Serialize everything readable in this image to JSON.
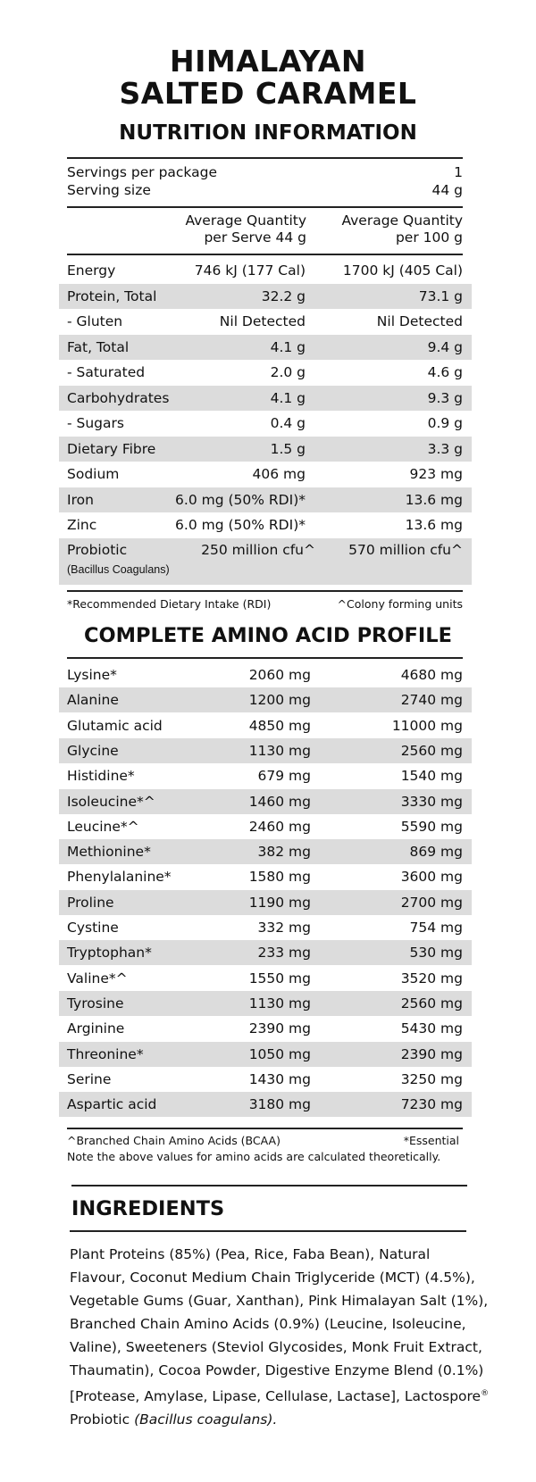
{
  "header": {
    "title_line1": "HIMALAYAN",
    "title_line2": "SALTED CARAMEL",
    "subtitle": "NUTRITION INFORMATION"
  },
  "servings": {
    "per_package_label": "Servings per package",
    "per_package_value": "1",
    "size_label": "Serving size",
    "size_value": "44 g"
  },
  "columns": {
    "per_serve_line1": "Average Quantity",
    "per_serve_line2": "per Serve 44 g",
    "per_100_line1": "Average Quantity",
    "per_100_line2": "per 100 g"
  },
  "nutrients": [
    {
      "name": "Energy",
      "serve": "746 kJ (177 Cal)",
      "per100": "1700 kJ (405 Cal)"
    },
    {
      "name": "Protein, Total",
      "serve": "32.2 g",
      "per100": "73.1 g"
    },
    {
      "name": "- Gluten",
      "serve": "Nil Detected",
      "per100": "Nil Detected"
    },
    {
      "name": "Fat, Total",
      "serve": "4.1 g",
      "per100": "9.4 g"
    },
    {
      "name": "- Saturated",
      "serve": "2.0 g",
      "per100": "4.6 g"
    },
    {
      "name": "Carbohydrates",
      "serve": "4.1 g",
      "per100": "9.3 g"
    },
    {
      "name": "- Sugars",
      "serve": "0.4 g",
      "per100": "0.9 g"
    },
    {
      "name": "Dietary Fibre",
      "serve": "1.5 g",
      "per100": "3.3 g"
    },
    {
      "name": "Sodium",
      "serve": "406 mg",
      "per100": "923 mg"
    },
    {
      "name": "Iron",
      "serve": "6.0 mg (50% RDI)*",
      "per100": "13.6 mg"
    },
    {
      "name": "Zinc",
      "serve": "6.0 mg (50% RDI)*",
      "per100": "13.6 mg"
    }
  ],
  "probiotic": {
    "name": "Probiotic",
    "subname": "(Bacillus Coagulans)",
    "serve": "250 million cfu^",
    "per100": "570 million cfu^"
  },
  "footnotes": {
    "rdi": "*Recommended Dietary Intake (RDI)",
    "cfu": "^Colony forming units"
  },
  "amino": {
    "title": "COMPLETE AMINO ACID PROFILE",
    "rows": [
      {
        "name": "Lysine*",
        "serve": "2060 mg",
        "per100": "4680 mg"
      },
      {
        "name": "Alanine",
        "serve": "1200 mg",
        "per100": "2740 mg"
      },
      {
        "name": "Glutamic acid",
        "serve": "4850 mg",
        "per100": "11000 mg"
      },
      {
        "name": "Glycine",
        "serve": "1130 mg",
        "per100": "2560 mg"
      },
      {
        "name": "Histidine*",
        "serve": "679 mg",
        "per100": "1540 mg"
      },
      {
        "name": "Isoleucine*^",
        "serve": "1460 mg",
        "per100": "3330 mg"
      },
      {
        "name": "Leucine*^",
        "serve": "2460 mg",
        "per100": "5590 mg"
      },
      {
        "name": "Methionine*",
        "serve": "382 mg",
        "per100": "869 mg"
      },
      {
        "name": "Phenylalanine*",
        "serve": "1580 mg",
        "per100": "3600 mg"
      },
      {
        "name": "Proline",
        "serve": "1190 mg",
        "per100": "2700 mg"
      },
      {
        "name": "Cystine",
        "serve": "332 mg",
        "per100": "754 mg"
      },
      {
        "name": "Tryptophan*",
        "serve": "233 mg",
        "per100": "530 mg"
      },
      {
        "name": "Valine*^",
        "serve": "1550 mg",
        "per100": "3520 mg"
      },
      {
        "name": "Tyrosine",
        "serve": "1130 mg",
        "per100": "2560 mg"
      },
      {
        "name": "Arginine",
        "serve": "2390 mg",
        "per100": "5430 mg"
      },
      {
        "name": "Threonine*",
        "serve": "1050 mg",
        "per100": "2390 mg"
      },
      {
        "name": "Serine",
        "serve": "1430 mg",
        "per100": "3250 mg"
      },
      {
        "name": "Aspartic acid",
        "serve": "3180 mg",
        "per100": "7230 mg"
      }
    ],
    "bcaa_note": "^Branched Chain Amino Acids (BCAA)",
    "essential_note": "*Essential",
    "calc_note": "Note the above values for amino acids are calculated theoretically."
  },
  "ingredients": {
    "title": "INGREDIENTS",
    "text": "Plant Proteins (85%) (Pea, Rice, Faba Bean), Natural Flavour, Coconut Medium Chain Triglyceride (MCT) (4.5%), Vegetable Gums (Guar, Xanthan), Pink Himalayan Salt (1%), Branched Chain Amino Acids (0.9%) (Leucine, Isoleucine, Valine), Sweeteners (Steviol Glycosides, Monk Fruit Extract, Thaumatin), Cocoa Powder, Digestive Enzyme Blend (0.1%) [Protease, Amylase, Lipase, Cellulase, Lactase], Lactospore",
    "registered": "®",
    "text_end": " Probiotic ",
    "italic": "(Bacillus coagulans)."
  },
  "colors": {
    "shade": "#dcdcdc",
    "text": "#111111"
  }
}
